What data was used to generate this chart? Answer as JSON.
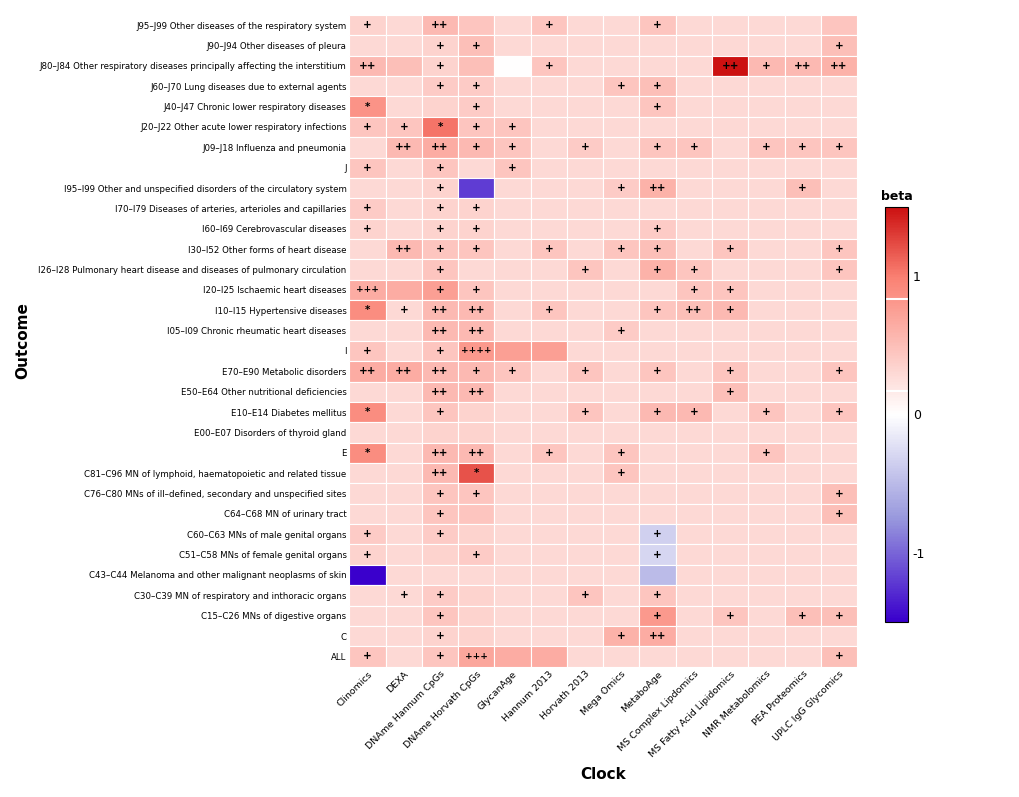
{
  "clocks": [
    "Clinomics",
    "DEXA",
    "DNAme Hannum CpGs",
    "DNAme Horvath CpGs",
    "GlycanAge",
    "Hannum 2013",
    "Horvath 2013",
    "Mega Omics",
    "MetaboAge",
    "MS Complex Lipdomics",
    "MS Fatty Acid Lipidomics",
    "NMR Metabolomics",
    "PEA Proteomics",
    "UPLC IgG Glycomics"
  ],
  "outcomes": [
    "J95–J99 Other diseases of the respiratory system",
    "J90–J94 Other diseases of pleura",
    "J80–J84 Other respiratory diseases principally affecting the interstitium",
    "J60–J70 Lung diseases due to external agents",
    "J40–J47 Chronic lower respiratory diseases",
    "J20–J22 Other acute lower respiratory infections",
    "J09–J18 Influenza and pneumonia",
    "J",
    "I95–I99 Other and unspecified disorders of the circulatory system",
    "I70–I79 Diseases of arteries, arterioles and capillaries",
    "I60–I69 Cerebrovascular diseases",
    "I30–I52 Other forms of heart disease",
    "I26–I28 Pulmonary heart disease and diseases of pulmonary circulation",
    "I20–I25 Ischaemic heart diseases",
    "I10–I15 Hypertensive diseases",
    "I05–I09 Chronic rheumatic heart diseases",
    "I",
    "E70–E90 Metabolic disorders",
    "E50–E64 Other nutritional deficiencies",
    "E10–E14 Diabetes mellitus",
    "E00–E07 Disorders of thyroid gland",
    "E",
    "C81–C96 MN of lymphoid, haematopoietic and related tissue",
    "C76–C80 MNs of ill–defined, secondary and unspecified sites",
    "C64–C68 MN of urinary tract",
    "C60–C63 MNs of male genital organs",
    "C51–C58 MNs of female genital organs",
    "C43–C44 Melanoma and other malignant neoplasms of skin",
    "C30–C39 MN of respiratory and inthoracic organs",
    "C15–C26 MNs of digestive organs",
    "C",
    "ALL"
  ],
  "beta_values": [
    [
      0.35,
      0.3,
      0.55,
      0.45,
      0.3,
      0.45,
      0.3,
      0.3,
      0.45,
      0.3,
      0.3,
      0.3,
      0.3,
      0.45
    ],
    [
      0.3,
      0.3,
      0.35,
      0.5,
      0.3,
      0.3,
      0.3,
      0.3,
      0.3,
      0.3,
      0.3,
      0.3,
      0.3,
      0.5
    ],
    [
      0.55,
      0.5,
      0.35,
      0.5,
      0.0,
      0.45,
      0.3,
      0.3,
      0.3,
      0.3,
      1.8,
      0.55,
      0.55,
      0.6
    ],
    [
      0.3,
      0.3,
      0.4,
      0.4,
      0.3,
      0.3,
      0.3,
      0.45,
      0.5,
      0.3,
      0.3,
      0.3,
      0.3,
      0.3
    ],
    [
      0.85,
      0.3,
      0.35,
      0.4,
      0.3,
      0.3,
      0.3,
      0.3,
      0.45,
      0.3,
      0.3,
      0.3,
      0.3,
      0.3
    ],
    [
      0.45,
      0.45,
      1.05,
      0.45,
      0.45,
      0.3,
      0.3,
      0.3,
      0.3,
      0.3,
      0.3,
      0.3,
      0.3,
      0.3
    ],
    [
      0.3,
      0.55,
      0.65,
      0.55,
      0.45,
      0.3,
      0.4,
      0.3,
      0.45,
      0.45,
      0.3,
      0.45,
      0.45,
      0.45
    ],
    [
      0.45,
      0.3,
      0.45,
      0.3,
      0.45,
      0.3,
      0.3,
      0.3,
      0.3,
      0.3,
      0.3,
      0.3,
      0.3,
      0.3
    ],
    [
      0.3,
      0.3,
      0.35,
      -1.2,
      0.3,
      0.3,
      0.3,
      0.4,
      0.6,
      0.3,
      0.3,
      0.3,
      0.5,
      0.3
    ],
    [
      0.4,
      0.3,
      0.35,
      0.35,
      0.3,
      0.3,
      0.3,
      0.3,
      0.3,
      0.3,
      0.3,
      0.3,
      0.3,
      0.3
    ],
    [
      0.35,
      0.3,
      0.35,
      0.35,
      0.3,
      0.3,
      0.3,
      0.3,
      0.4,
      0.3,
      0.3,
      0.3,
      0.3,
      0.3
    ],
    [
      0.3,
      0.55,
      0.45,
      0.45,
      0.3,
      0.45,
      0.3,
      0.45,
      0.5,
      0.3,
      0.45,
      0.3,
      0.3,
      0.45
    ],
    [
      0.3,
      0.3,
      0.45,
      0.3,
      0.3,
      0.3,
      0.45,
      0.3,
      0.6,
      0.45,
      0.3,
      0.3,
      0.3,
      0.45
    ],
    [
      0.65,
      0.65,
      0.75,
      0.45,
      0.3,
      0.3,
      0.3,
      0.3,
      0.3,
      0.45,
      0.45,
      0.3,
      0.3,
      0.3
    ],
    [
      0.9,
      0.3,
      0.55,
      0.55,
      0.3,
      0.45,
      0.3,
      0.3,
      0.45,
      0.5,
      0.55,
      0.3,
      0.3,
      0.3
    ],
    [
      0.3,
      0.3,
      0.55,
      0.55,
      0.3,
      0.3,
      0.3,
      0.4,
      0.3,
      0.3,
      0.3,
      0.3,
      0.3,
      0.3
    ],
    [
      0.45,
      0.3,
      0.45,
      0.8,
      0.75,
      0.75,
      0.3,
      0.3,
      0.3,
      0.3,
      0.3,
      0.3,
      0.3,
      0.3
    ],
    [
      0.65,
      0.65,
      0.55,
      0.55,
      0.45,
      0.3,
      0.45,
      0.3,
      0.45,
      0.3,
      0.45,
      0.3,
      0.3,
      0.45
    ],
    [
      0.3,
      0.3,
      0.55,
      0.55,
      0.3,
      0.3,
      0.3,
      0.3,
      0.3,
      0.3,
      0.5,
      0.3,
      0.3,
      0.3
    ],
    [
      0.9,
      0.3,
      0.45,
      0.35,
      0.3,
      0.3,
      0.45,
      0.3,
      0.55,
      0.55,
      0.3,
      0.45,
      0.3,
      0.45
    ],
    [
      0.3,
      0.3,
      0.35,
      0.35,
      0.3,
      0.3,
      0.3,
      0.3,
      0.3,
      0.3,
      0.3,
      0.3,
      0.3,
      0.3
    ],
    [
      0.9,
      0.3,
      0.55,
      0.55,
      0.3,
      0.45,
      0.3,
      0.45,
      0.3,
      0.3,
      0.3,
      0.45,
      0.3,
      0.3
    ],
    [
      0.3,
      0.3,
      0.55,
      1.2,
      0.3,
      0.3,
      0.3,
      0.45,
      0.3,
      0.3,
      0.3,
      0.3,
      0.3,
      0.3
    ],
    [
      0.3,
      0.3,
      0.45,
      0.45,
      0.3,
      0.3,
      0.3,
      0.3,
      0.3,
      0.3,
      0.3,
      0.3,
      0.3,
      0.5
    ],
    [
      0.3,
      0.3,
      0.45,
      0.45,
      0.3,
      0.3,
      0.3,
      0.3,
      0.3,
      0.3,
      0.3,
      0.3,
      0.3,
      0.5
    ],
    [
      0.4,
      0.3,
      0.4,
      0.35,
      0.3,
      0.3,
      0.3,
      0.3,
      -0.35,
      0.3,
      0.3,
      0.3,
      0.3,
      0.3
    ],
    [
      0.35,
      0.3,
      0.35,
      0.4,
      0.3,
      0.3,
      0.3,
      0.3,
      -0.3,
      0.3,
      0.3,
      0.3,
      0.3,
      0.3
    ],
    [
      -1.5,
      0.3,
      0.3,
      0.3,
      0.3,
      0.3,
      0.3,
      0.3,
      -0.5,
      0.3,
      0.3,
      0.3,
      0.3,
      0.3
    ],
    [
      0.3,
      0.3,
      0.4,
      0.35,
      0.3,
      0.3,
      0.45,
      0.3,
      0.45,
      0.3,
      0.3,
      0.3,
      0.3,
      0.3
    ],
    [
      0.3,
      0.3,
      0.45,
      0.35,
      0.3,
      0.3,
      0.3,
      0.3,
      0.8,
      0.3,
      0.45,
      0.3,
      0.5,
      0.5
    ],
    [
      0.3,
      0.3,
      0.35,
      0.35,
      0.3,
      0.3,
      0.3,
      0.6,
      0.65,
      0.3,
      0.3,
      0.3,
      0.3,
      0.3
    ],
    [
      0.45,
      0.3,
      0.45,
      0.7,
      0.65,
      0.65,
      0.3,
      0.3,
      0.3,
      0.3,
      0.3,
      0.3,
      0.3,
      0.5
    ]
  ],
  "annotations": [
    [
      "+",
      "",
      "++",
      "",
      "",
      "+",
      "",
      "",
      "+",
      "",
      "",
      "",
      "",
      ""
    ],
    [
      "",
      "",
      "+",
      "+",
      "",
      "",
      "",
      "",
      "",
      "",
      "",
      "",
      "",
      "+"
    ],
    [
      "++",
      "",
      "+",
      "",
      "",
      "+",
      "",
      "",
      "",
      "",
      "++",
      "+",
      "++",
      "++"
    ],
    [
      "",
      "",
      "+",
      "+",
      "",
      "",
      "",
      "+",
      "+",
      "",
      "",
      "",
      "",
      ""
    ],
    [
      "*",
      "",
      "",
      "+",
      "",
      "",
      "",
      "",
      "+",
      "",
      "",
      "",
      "",
      ""
    ],
    [
      "+",
      "+",
      "*",
      "+",
      "+",
      "",
      "",
      "",
      "",
      "",
      "",
      "",
      "",
      ""
    ],
    [
      "",
      "++",
      "++",
      "+",
      "+",
      "",
      "+",
      "",
      "+",
      "+",
      "",
      "+",
      "+",
      "+"
    ],
    [
      "+",
      "",
      "+",
      "",
      "+",
      "",
      "",
      "",
      "",
      "",
      "",
      "",
      "",
      ""
    ],
    [
      "",
      "",
      "+",
      "",
      "",
      "",
      "",
      "+",
      "++",
      "",
      "",
      "",
      "+",
      ""
    ],
    [
      "+",
      "",
      "+",
      "+",
      "",
      "",
      "",
      "",
      "",
      "",
      "",
      "",
      "",
      ""
    ],
    [
      "+",
      "",
      "+",
      "+",
      "",
      "",
      "",
      "",
      "+",
      "",
      "",
      "",
      "",
      ""
    ],
    [
      "",
      "++",
      "+",
      "+",
      "",
      "+",
      "",
      "+",
      "+",
      "",
      "+",
      "",
      "",
      "+"
    ],
    [
      "",
      "",
      "+",
      "",
      "",
      "",
      "+",
      "",
      "+",
      "+",
      "",
      "",
      "",
      "+"
    ],
    [
      "+++",
      "",
      "+",
      "+",
      "",
      "",
      "",
      "",
      "",
      "+",
      "+",
      "",
      "",
      ""
    ],
    [
      "*",
      "+",
      "++",
      "++",
      "",
      "+",
      "",
      "",
      "+",
      "++",
      "+",
      "",
      "",
      ""
    ],
    [
      "",
      "",
      "++",
      "++",
      "",
      "",
      "",
      "+",
      "",
      "",
      "",
      "",
      "",
      ""
    ],
    [
      "+",
      "",
      "+",
      "++++",
      "",
      "",
      "",
      "",
      "",
      "",
      "",
      "",
      "",
      ""
    ],
    [
      "++",
      "++",
      "++",
      "+",
      "+",
      "",
      "+",
      "",
      "+",
      "",
      "+",
      "",
      "",
      "+"
    ],
    [
      "",
      "",
      "++",
      "++",
      "",
      "",
      "",
      "",
      "",
      "",
      "+",
      "",
      "",
      ""
    ],
    [
      "*",
      "",
      "+",
      "",
      "",
      "",
      "+",
      "",
      "+",
      "+",
      "",
      "+",
      "",
      "+"
    ],
    [
      "",
      "",
      "",
      "",
      "",
      "",
      "",
      "",
      "",
      "",
      "",
      "",
      "",
      ""
    ],
    [
      "*",
      "",
      "++",
      "++",
      "",
      "+",
      "",
      "+",
      "",
      "",
      "",
      "+",
      "",
      ""
    ],
    [
      "",
      "",
      "++",
      "*",
      "",
      "",
      "",
      "+",
      "",
      "",
      "",
      "",
      "",
      ""
    ],
    [
      "",
      "",
      "+",
      "+",
      "",
      "",
      "",
      "",
      "",
      "",
      "",
      "",
      "",
      "+"
    ],
    [
      "",
      "",
      "+",
      "",
      "",
      "",
      "",
      "",
      "",
      "",
      "",
      "",
      "",
      "+"
    ],
    [
      "+",
      "",
      "+",
      "",
      "",
      "",
      "",
      "",
      "+",
      "",
      "",
      "",
      "",
      ""
    ],
    [
      "+",
      "",
      "",
      "+",
      "",
      "",
      "",
      "",
      "+",
      "",
      "",
      "",
      "",
      ""
    ],
    [
      "",
      "",
      "",
      "",
      "",
      "",
      "",
      "",
      "",
      "",
      "",
      "",
      "",
      ""
    ],
    [
      "",
      "+",
      "+",
      "",
      "",
      "",
      "+",
      "",
      "+",
      "",
      "",
      "",
      "",
      ""
    ],
    [
      "",
      "",
      "+",
      "",
      "",
      "",
      "",
      "",
      "+",
      "",
      "+",
      "",
      "+",
      "+"
    ],
    [
      "",
      "",
      "+",
      "",
      "",
      "",
      "",
      "+",
      "++",
      "",
      "",
      "",
      "",
      ""
    ],
    [
      "+",
      "",
      "+",
      "+++",
      "",
      "",
      "",
      "",
      "",
      "",
      "",
      "",
      "",
      "+"
    ]
  ],
  "xlabel": "Clock",
  "ylabel": "Outcome",
  "colorbar_title": "beta",
  "vmin": -1.5,
  "vmax": 1.5,
  "background_color": "#ffffff"
}
